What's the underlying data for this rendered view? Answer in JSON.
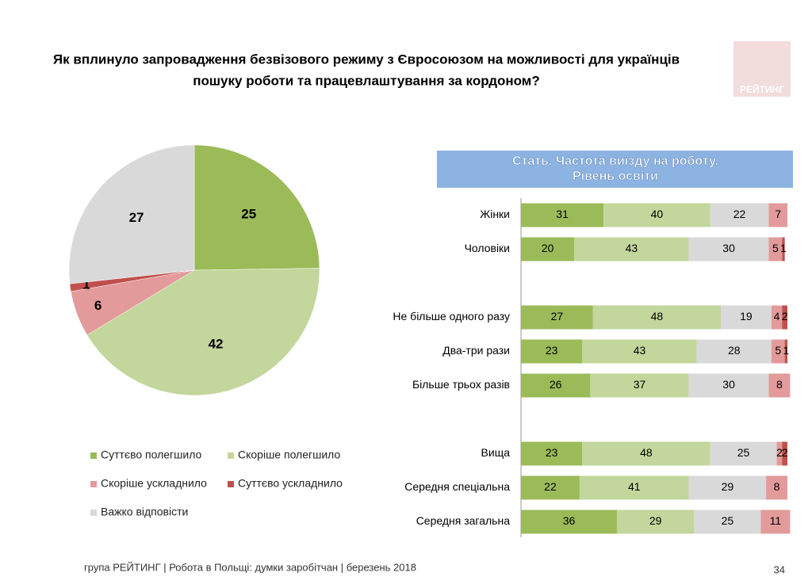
{
  "title": [
    "Як вплинуло запровадження безвізового режиму з Євросоюзом на можливості для українців",
    "пошуку роботи та працевлаштування за кордоном?"
  ],
  "logo": "РЕЙТИНГ",
  "footer": "група РЕЙТИНГ  | Робота в Польщі: думки заробітчан  |  березень 2018",
  "page_number": "34",
  "chart_data": [
    {
      "type": "pie",
      "categories": [
        "Суттєво полегшило",
        "Скоріше полегшило",
        "Скоріше ускладнило",
        "Суттєво ускладнило",
        "Важко відповісти"
      ],
      "values": [
        25,
        42,
        6,
        1,
        27
      ],
      "colors": [
        "#9bbb59",
        "#c3d69b",
        "#e29a9a",
        "#c0504d",
        "#d9d9d9"
      ]
    },
    {
      "type": "bar",
      "title": [
        "Стать. Частота виїзду на роботу.",
        "Рівень освіти"
      ],
      "categories": [
        "Жінки",
        "Чоловіки",
        null,
        "Не більше одного разу",
        "Два-три рази",
        "Більше трьох разів",
        null,
        "Вища",
        "Середня спеціальна",
        "Середня загальна"
      ],
      "series": [
        {
          "color": "#9bbb59",
          "values": [
            31,
            20,
            null,
            27,
            23,
            26,
            null,
            23,
            22,
            36
          ]
        },
        {
          "color": "#c3d69b",
          "values": [
            40,
            43,
            null,
            48,
            43,
            37,
            null,
            48,
            41,
            29
          ]
        },
        {
          "color": "#d9d9d9",
          "values": [
            22,
            30,
            null,
            19,
            28,
            30,
            null,
            25,
            29,
            25
          ]
        },
        {
          "color": "#e29a9a",
          "values": [
            7,
            5,
            null,
            4,
            5,
            8,
            null,
            2,
            8,
            11
          ]
        },
        {
          "color": "#c0504d",
          "values": [
            null,
            1,
            null,
            2,
            1,
            null,
            null,
            2,
            null,
            null
          ]
        }
      ]
    }
  ]
}
